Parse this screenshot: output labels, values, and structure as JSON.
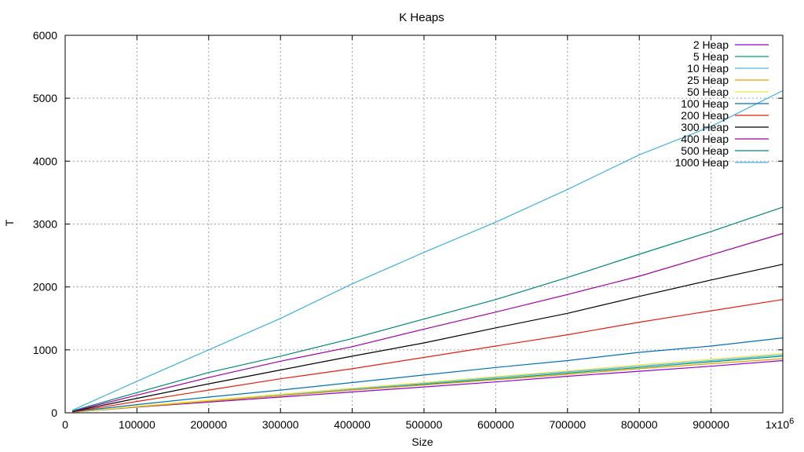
{
  "chart_data": {
    "type": "line",
    "title": "K Heaps",
    "xlabel": "Size",
    "ylabel": "T",
    "xlim": [
      0,
      1000000
    ],
    "ylim": [
      0,
      6000
    ],
    "grid": true,
    "legend_position": "top-right",
    "x_ticks": [
      "0",
      "100000",
      "200000",
      "300000",
      "400000",
      "500000",
      "600000",
      "700000",
      "800000",
      "900000",
      "1x10"
    ],
    "x_tick_values": [
      0,
      100000,
      200000,
      300000,
      400000,
      500000,
      600000,
      700000,
      800000,
      900000,
      1000000
    ],
    "x_multiplier_exponent": "6",
    "y_ticks": [
      "0",
      "1000",
      "2000",
      "3000",
      "4000",
      "5000",
      "6000"
    ],
    "y_tick_values": [
      0,
      1000,
      2000,
      3000,
      4000,
      5000,
      6000
    ],
    "x": [
      10000,
      100000,
      200000,
      300000,
      400000,
      500000,
      600000,
      700000,
      800000,
      900000,
      1000000
    ],
    "series": [
      {
        "name": "2 Heap",
        "color": "#9400d3",
        "values": [
          10,
          90,
          170,
          250,
          330,
          410,
          490,
          580,
          660,
          740,
          830
        ]
      },
      {
        "name": "5 Heap",
        "color": "#009e73",
        "values": [
          10,
          95,
          185,
          275,
          365,
          450,
          540,
          630,
          720,
          810,
          900
        ]
      },
      {
        "name": "10 Heap",
        "color": "#56b4e9",
        "values": [
          10,
          100,
          190,
          280,
          375,
          465,
          560,
          650,
          740,
          830,
          920
        ]
      },
      {
        "name": "25 Heap",
        "color": "#e69f00",
        "values": [
          10,
          95,
          185,
          270,
          360,
          440,
          525,
          610,
          700,
          780,
          860
        ]
      },
      {
        "name": "50 Heap",
        "color": "#f0e442",
        "values": [
          10,
          105,
          200,
          295,
          390,
          480,
          575,
          665,
          760,
          850,
          940
        ]
      },
      {
        "name": "100 Heap",
        "color": "#0072b2",
        "values": [
          15,
          130,
          250,
          360,
          480,
          600,
          720,
          830,
          960,
          1060,
          1190
        ]
      },
      {
        "name": "200 Heap",
        "color": "#e51e10",
        "values": [
          15,
          180,
          360,
          540,
          700,
          880,
          1060,
          1240,
          1440,
          1620,
          1800
        ]
      },
      {
        "name": "300 Heap",
        "color": "#000000",
        "values": [
          20,
          230,
          460,
          680,
          900,
          1110,
          1350,
          1580,
          1850,
          2110,
          2360
        ]
      },
      {
        "name": "400 Heap",
        "color": "#a000a0",
        "values": [
          25,
          280,
          560,
          820,
          1050,
          1330,
          1600,
          1880,
          2170,
          2510,
          2850
        ]
      },
      {
        "name": "500 Heap",
        "color": "#008878",
        "values": [
          30,
          320,
          640,
          900,
          1180,
          1490,
          1800,
          2150,
          2520,
          2880,
          3270
        ]
      },
      {
        "name": "1000 Heap",
        "color": "#40b0e0",
        "values": [
          40,
          500,
          1000,
          1500,
          2050,
          2550,
          3030,
          3550,
          4100,
          4550,
          5120
        ]
      }
    ]
  }
}
